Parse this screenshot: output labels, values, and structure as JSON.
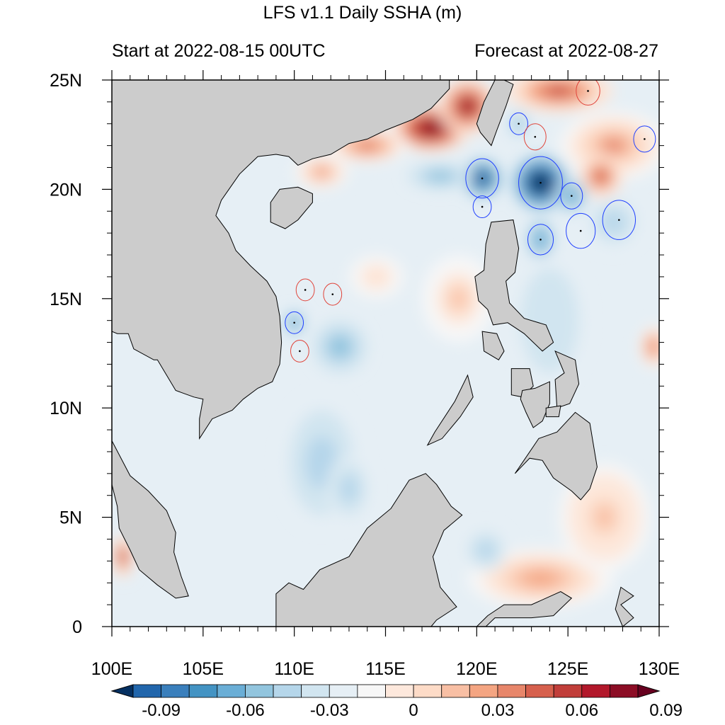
{
  "title": "LFS v1.1 Daily SSHA (m)",
  "subtitle_left": "Start at 2022-08-15 00UTC",
  "subtitle_right": "Forecast at 2022-08-27",
  "colors": {
    "land": "#cccccc",
    "positive_dark": "#67001f",
    "negative_dark": "#053061",
    "zero": "#f7f7f7"
  },
  "chart_data": {
    "type": "heatmap",
    "title": "LFS v1.1 Daily SSHA (m)",
    "variable": "sea surface height anomaly",
    "unit": "m",
    "xlabel": "",
    "ylabel": "",
    "xlim": [
      100,
      130
    ],
    "ylim": [
      0,
      25
    ],
    "x_ticks": [
      {
        "value": 100,
        "label": "100E"
      },
      {
        "value": 105,
        "label": "105E"
      },
      {
        "value": 110,
        "label": "110E"
      },
      {
        "value": 115,
        "label": "115E"
      },
      {
        "value": 120,
        "label": "120E"
      },
      {
        "value": 125,
        "label": "125E"
      },
      {
        "value": 130,
        "label": "130E"
      }
    ],
    "y_ticks": [
      {
        "value": 0,
        "label": "0"
      },
      {
        "value": 5,
        "label": "5N"
      },
      {
        "value": 10,
        "label": "10N"
      },
      {
        "value": 15,
        "label": "15N"
      },
      {
        "value": 20,
        "label": "20N"
      },
      {
        "value": 25,
        "label": "25N"
      }
    ],
    "colorbar": {
      "levels": [
        -0.1,
        -0.09,
        -0.08,
        -0.07,
        -0.06,
        -0.05,
        -0.04,
        -0.03,
        -0.02,
        -0.01,
        0,
        0.01,
        0.02,
        0.03,
        0.04,
        0.05,
        0.06,
        0.07,
        0.08,
        0.09,
        0.1
      ],
      "colors": [
        "#053061",
        "#2166ac",
        "#3a7fbc",
        "#4393c3",
        "#6aaed6",
        "#92c5de",
        "#b5d6ea",
        "#d1e5f0",
        "#e6eff5",
        "#f7f7f7",
        "#fde8dc",
        "#fddbc7",
        "#f8bfa4",
        "#f4a582",
        "#e7866a",
        "#d6604d",
        "#c13e3a",
        "#b2182b",
        "#8c0d25",
        "#67001f"
      ],
      "labels": [
        {
          "value": -0.09,
          "label": "-0.09"
        },
        {
          "value": -0.06,
          "label": "-0.06"
        },
        {
          "value": -0.03,
          "label": "-0.03"
        },
        {
          "value": 0,
          "label": "0"
        },
        {
          "value": 0.03,
          "label": "0.03"
        },
        {
          "value": 0.06,
          "label": "0.06"
        },
        {
          "value": 0.09,
          "label": "0.09"
        }
      ]
    },
    "background_value": -0.015,
    "anomalies": [
      {
        "lon": 117.5,
        "lat": 22.8,
        "value": 0.1,
        "rx": 2.2,
        "ry": 1.1
      },
      {
        "lon": 119.5,
        "lat": 23.8,
        "value": 0.08,
        "rx": 1.6,
        "ry": 1.3
      },
      {
        "lon": 114.0,
        "lat": 22.0,
        "value": 0.05,
        "rx": 2.2,
        "ry": 0.8
      },
      {
        "lon": 111.5,
        "lat": 20.8,
        "value": 0.04,
        "rx": 1.5,
        "ry": 0.8
      },
      {
        "lon": 124.5,
        "lat": 24.5,
        "value": 0.06,
        "rx": 3.0,
        "ry": 1.0
      },
      {
        "lon": 127.5,
        "lat": 22.0,
        "value": 0.04,
        "rx": 3.0,
        "ry": 1.6
      },
      {
        "lon": 126.8,
        "lat": 20.6,
        "value": 0.06,
        "rx": 1.2,
        "ry": 1.0
      },
      {
        "lon": 100.6,
        "lat": 3.2,
        "value": 0.07,
        "rx": 0.6,
        "ry": 1.0
      },
      {
        "lon": 129.7,
        "lat": 12.8,
        "value": 0.05,
        "rx": 0.8,
        "ry": 1.0
      },
      {
        "lon": 123.5,
        "lat": 2.2,
        "value": 0.03,
        "rx": 4.0,
        "ry": 1.4
      },
      {
        "lon": 127.0,
        "lat": 5.0,
        "value": 0.025,
        "rx": 2.5,
        "ry": 2.5
      },
      {
        "lon": 119.0,
        "lat": 15.0,
        "value": 0.02,
        "rx": 2.0,
        "ry": 2.0
      },
      {
        "lon": 114.5,
        "lat": 16.0,
        "value": 0.015,
        "rx": 1.5,
        "ry": 1.0
      },
      {
        "lon": 120.3,
        "lat": 20.5,
        "value": -0.1,
        "rx": 1.1,
        "ry": 0.9
      },
      {
        "lon": 118.0,
        "lat": 20.6,
        "value": -0.05,
        "rx": 1.8,
        "ry": 0.6
      },
      {
        "lon": 123.5,
        "lat": 20.3,
        "value": -0.12,
        "rx": 1.6,
        "ry": 1.3
      },
      {
        "lon": 125.2,
        "lat": 19.7,
        "value": -0.06,
        "rx": 0.9,
        "ry": 0.8
      },
      {
        "lon": 123.5,
        "lat": 17.7,
        "value": -0.06,
        "rx": 0.8,
        "ry": 1.0
      },
      {
        "lon": 122.3,
        "lat": 23.0,
        "value": -0.05,
        "rx": 0.6,
        "ry": 0.6
      },
      {
        "lon": 127.5,
        "lat": 18.5,
        "value": -0.04,
        "rx": 1.5,
        "ry": 1.2
      },
      {
        "lon": 110.0,
        "lat": 13.9,
        "value": -0.06,
        "rx": 0.6,
        "ry": 0.6
      },
      {
        "lon": 112.5,
        "lat": 12.8,
        "value": -0.05,
        "rx": 1.5,
        "ry": 1.2
      },
      {
        "lon": 111.5,
        "lat": 7.5,
        "value": -0.035,
        "rx": 2.2,
        "ry": 3.0
      },
      {
        "lon": 113.0,
        "lat": 6.3,
        "value": -0.035,
        "rx": 1.2,
        "ry": 1.5
      },
      {
        "lon": 120.5,
        "lat": 3.5,
        "value": -0.04,
        "rx": 1.2,
        "ry": 1.0
      },
      {
        "lon": 124.0,
        "lat": 14.0,
        "value": -0.03,
        "rx": 2.0,
        "ry": 3.0
      }
    ],
    "annotation_circles": [
      {
        "lon": 120.3,
        "lat": 20.5,
        "r": 0.9,
        "sign": "negative"
      },
      {
        "lon": 123.5,
        "lat": 20.3,
        "r": 1.2,
        "sign": "negative"
      },
      {
        "lon": 120.3,
        "lat": 19.2,
        "r": 0.5,
        "sign": "negative"
      },
      {
        "lon": 125.2,
        "lat": 19.7,
        "r": 0.6,
        "sign": "negative"
      },
      {
        "lon": 123.5,
        "lat": 17.7,
        "r": 0.7,
        "sign": "negative"
      },
      {
        "lon": 125.7,
        "lat": 18.1,
        "r": 0.8,
        "sign": "negative"
      },
      {
        "lon": 127.8,
        "lat": 18.6,
        "r": 0.9,
        "sign": "negative"
      },
      {
        "lon": 122.3,
        "lat": 23.0,
        "r": 0.5,
        "sign": "negative"
      },
      {
        "lon": 129.2,
        "lat": 22.3,
        "r": 0.6,
        "sign": "negative"
      },
      {
        "lon": 110.0,
        "lat": 13.9,
        "r": 0.5,
        "sign": "negative"
      },
      {
        "lon": 123.2,
        "lat": 22.4,
        "r": 0.6,
        "sign": "positive"
      },
      {
        "lon": 126.1,
        "lat": 24.5,
        "r": 0.65,
        "sign": "positive"
      },
      {
        "lon": 110.6,
        "lat": 15.4,
        "r": 0.5,
        "sign": "positive"
      },
      {
        "lon": 112.1,
        "lat": 15.2,
        "r": 0.5,
        "sign": "positive"
      },
      {
        "lon": 110.3,
        "lat": 12.6,
        "r": 0.5,
        "sign": "positive"
      }
    ],
    "land_areas": [
      {
        "name": "mainland-asia",
        "points": [
          [
            100,
            25
          ],
          [
            118.5,
            25
          ],
          [
            118.5,
            24.6
          ],
          [
            117.5,
            23.7
          ],
          [
            116.5,
            23.2
          ],
          [
            115,
            22.7
          ],
          [
            114,
            22.3
          ],
          [
            113,
            22.1
          ],
          [
            112,
            21.6
          ],
          [
            111,
            21.4
          ],
          [
            110.2,
            21.1
          ],
          [
            109.7,
            21.5
          ],
          [
            109,
            21.6
          ],
          [
            108,
            21.5
          ],
          [
            107,
            20.7
          ],
          [
            106.5,
            20.1
          ],
          [
            106,
            19.5
          ],
          [
            105.7,
            18.8
          ],
          [
            106.4,
            18
          ],
          [
            106.8,
            17.2
          ],
          [
            107.6,
            16.5
          ],
          [
            108.5,
            15.8
          ],
          [
            109,
            15.1
          ],
          [
            109.2,
            14.2
          ],
          [
            109.3,
            13
          ],
          [
            109.2,
            12
          ],
          [
            108.8,
            11.2
          ],
          [
            108,
            10.9
          ],
          [
            107.2,
            10.4
          ],
          [
            106.6,
            9.9
          ],
          [
            105.5,
            9.5
          ],
          [
            104.8,
            8.6
          ],
          [
            104.8,
            9.5
          ],
          [
            105,
            10.4
          ],
          [
            104.5,
            10.5
          ],
          [
            103.5,
            10.8
          ],
          [
            103,
            11.5
          ],
          [
            102.5,
            12.2
          ],
          [
            102.3,
            12.2
          ],
          [
            101.2,
            12.7
          ],
          [
            100.9,
            13.4
          ],
          [
            100.3,
            13.4
          ],
          [
            100,
            13.5
          ]
        ]
      },
      {
        "name": "malay-peninsula",
        "points": [
          [
            100,
            8.5
          ],
          [
            101,
            6.9
          ],
          [
            102,
            6.2
          ],
          [
            103,
            5.3
          ],
          [
            103.5,
            4.3
          ],
          [
            103.4,
            3.4
          ],
          [
            103.8,
            2.3
          ],
          [
            104.2,
            1.4
          ],
          [
            103.5,
            1.3
          ],
          [
            102.5,
            1.9
          ],
          [
            101.5,
            2.6
          ],
          [
            101,
            3.5
          ],
          [
            100.4,
            4.5
          ],
          [
            100.3,
            5.5
          ],
          [
            100,
            6.5
          ]
        ]
      },
      {
        "name": "hainan",
        "points": [
          [
            108.7,
            19.4
          ],
          [
            109.2,
            20
          ],
          [
            110.2,
            20.1
          ],
          [
            111,
            19.8
          ],
          [
            111,
            19.4
          ],
          [
            110.2,
            18.6
          ],
          [
            109.5,
            18.2
          ],
          [
            108.7,
            18.5
          ]
        ]
      },
      {
        "name": "taiwan",
        "points": [
          [
            121.5,
            25
          ],
          [
            122,
            24.8
          ],
          [
            121.6,
            23.8
          ],
          [
            121.1,
            22.7
          ],
          [
            120.8,
            22
          ],
          [
            120.2,
            22.6
          ],
          [
            120,
            23
          ],
          [
            120.4,
            24
          ],
          [
            121,
            25
          ]
        ]
      },
      {
        "name": "luzon",
        "points": [
          [
            120.8,
            18.5
          ],
          [
            122,
            18.6
          ],
          [
            122.3,
            17.3
          ],
          [
            122.1,
            16.2
          ],
          [
            121.6,
            15.8
          ],
          [
            121.8,
            14.8
          ],
          [
            122.6,
            14.1
          ],
          [
            123.8,
            13.8
          ],
          [
            124.2,
            13
          ],
          [
            123.6,
            12.6
          ],
          [
            122.6,
            13.4
          ],
          [
            121.7,
            13.9
          ],
          [
            120.9,
            13.8
          ],
          [
            120.6,
            14.5
          ],
          [
            120.1,
            14.9
          ],
          [
            119.9,
            16
          ],
          [
            120.4,
            16.3
          ],
          [
            120.5,
            17.5
          ]
        ]
      },
      {
        "name": "mindoro",
        "points": [
          [
            120.3,
            13.5
          ],
          [
            121.1,
            13.4
          ],
          [
            121.5,
            12.6
          ],
          [
            121.2,
            12.2
          ],
          [
            120.4,
            12.6
          ]
        ]
      },
      {
        "name": "samar-leyte",
        "points": [
          [
            124.3,
            12.6
          ],
          [
            125.4,
            12.2
          ],
          [
            125.6,
            11.1
          ],
          [
            125.1,
            10.2
          ],
          [
            124.4,
            10
          ],
          [
            124.3,
            11.3
          ],
          [
            124.8,
            11.6
          ]
        ]
      },
      {
        "name": "panay",
        "points": [
          [
            121.9,
            11.8
          ],
          [
            122.9,
            11.8
          ],
          [
            123.1,
            11
          ],
          [
            122.5,
            10.5
          ],
          [
            121.9,
            10.6
          ]
        ]
      },
      {
        "name": "negros-cebu",
        "points": [
          [
            122.5,
            10.8
          ],
          [
            123.2,
            10.9
          ],
          [
            124,
            11.2
          ],
          [
            124,
            10.2
          ],
          [
            123.6,
            9.4
          ],
          [
            123.1,
            9.1
          ],
          [
            122.7,
            9.8
          ],
          [
            122.4,
            10.4
          ]
        ]
      },
      {
        "name": "bohol",
        "points": [
          [
            123.8,
            10
          ],
          [
            124.6,
            10.1
          ],
          [
            124.5,
            9.6
          ],
          [
            123.8,
            9.6
          ]
        ]
      },
      {
        "name": "palawan",
        "points": [
          [
            119.5,
            11.5
          ],
          [
            119.8,
            10.5
          ],
          [
            119.1,
            9.6
          ],
          [
            118.1,
            8.6
          ],
          [
            117.3,
            8.3
          ],
          [
            117.7,
            8.9
          ],
          [
            118.8,
            10.3
          ]
        ]
      },
      {
        "name": "mindanao",
        "points": [
          [
            123.4,
            8.6
          ],
          [
            124.4,
            8.9
          ],
          [
            125.4,
            9.8
          ],
          [
            126.2,
            9.3
          ],
          [
            126.6,
            7.3
          ],
          [
            126.2,
            6.3
          ],
          [
            125.7,
            5.8
          ],
          [
            125.2,
            6.2
          ],
          [
            124.2,
            6.8
          ],
          [
            123.6,
            7.6
          ],
          [
            122.9,
            7.7
          ],
          [
            122.1,
            7
          ]
        ]
      },
      {
        "name": "borneo",
        "points": [
          [
            109,
            1.5
          ],
          [
            109.7,
            2
          ],
          [
            110.5,
            1.7
          ],
          [
            111.4,
            2.6
          ],
          [
            113,
            3.2
          ],
          [
            114,
            4.5
          ],
          [
            115.3,
            5.4
          ],
          [
            116.3,
            6.7
          ],
          [
            117.2,
            7
          ],
          [
            117.8,
            6.5
          ],
          [
            118.6,
            5.5
          ],
          [
            119.2,
            5.1
          ],
          [
            118.2,
            4.4
          ],
          [
            117.6,
            3.2
          ],
          [
            118,
            1.8
          ],
          [
            118.9,
            0.9
          ],
          [
            117.8,
            0.3
          ],
          [
            117.5,
            0
          ],
          [
            109,
            0
          ]
        ]
      },
      {
        "name": "sulawesi",
        "points": [
          [
            120,
            0
          ],
          [
            120.6,
            0.5
          ],
          [
            121.5,
            1
          ],
          [
            123,
            1
          ],
          [
            124.6,
            1.6
          ],
          [
            125.2,
            1.3
          ],
          [
            124.2,
            0.5
          ],
          [
            123,
            0.4
          ],
          [
            121,
            0.4
          ],
          [
            120.5,
            0
          ]
        ]
      },
      {
        "name": "halmahera",
        "points": [
          [
            127.9,
            1.8
          ],
          [
            128.6,
            1.4
          ],
          [
            127.9,
            1
          ],
          [
            128.6,
            0.4
          ],
          [
            128,
            0
          ],
          [
            127.6,
            0.8
          ]
        ]
      }
    ]
  }
}
